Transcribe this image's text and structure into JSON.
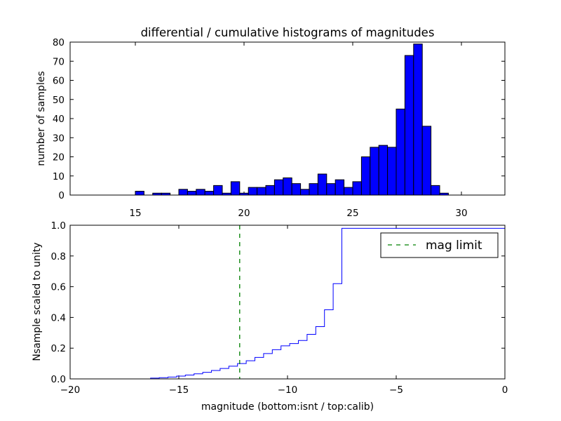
{
  "chart_data": [
    {
      "type": "bar",
      "title": "differential / cumulative histograms of magnitudes",
      "xlabel": "",
      "ylabel": "number of samples",
      "xlim": [
        12.0,
        32.0
      ],
      "ylim": [
        0,
        80
      ],
      "x_ticks": [
        "15",
        "20",
        "25",
        "30"
      ],
      "y_ticks": [
        "0",
        "10",
        "20",
        "30",
        "40",
        "50",
        "60",
        "70",
        "80"
      ],
      "x_tick_position": "top",
      "bin_width": 0.4,
      "color": "#0000ff",
      "edge_color": "#000000",
      "bins": [
        {
          "x0": 15.0,
          "count": 2
        },
        {
          "x0": 15.4,
          "count": 0
        },
        {
          "x0": 15.8,
          "count": 1
        },
        {
          "x0": 16.2,
          "count": 1
        },
        {
          "x0": 16.6,
          "count": 0
        },
        {
          "x0": 17.0,
          "count": 3
        },
        {
          "x0": 17.4,
          "count": 2
        },
        {
          "x0": 17.8,
          "count": 3
        },
        {
          "x0": 18.2,
          "count": 2
        },
        {
          "x0": 18.6,
          "count": 5
        },
        {
          "x0": 19.0,
          "count": 1
        },
        {
          "x0": 19.4,
          "count": 7
        },
        {
          "x0": 19.8,
          "count": 1
        },
        {
          "x0": 20.2,
          "count": 4
        },
        {
          "x0": 20.6,
          "count": 4
        },
        {
          "x0": 21.0,
          "count": 5
        },
        {
          "x0": 21.4,
          "count": 8
        },
        {
          "x0": 21.8,
          "count": 9
        },
        {
          "x0": 22.2,
          "count": 6
        },
        {
          "x0": 22.6,
          "count": 3
        },
        {
          "x0": 23.0,
          "count": 6
        },
        {
          "x0": 23.4,
          "count": 11
        },
        {
          "x0": 23.8,
          "count": 6
        },
        {
          "x0": 24.2,
          "count": 8
        },
        {
          "x0": 24.6,
          "count": 4
        },
        {
          "x0": 25.0,
          "count": 7
        },
        {
          "x0": 25.4,
          "count": 20
        },
        {
          "x0": 25.8,
          "count": 25
        },
        {
          "x0": 26.2,
          "count": 26
        },
        {
          "x0": 26.6,
          "count": 25
        },
        {
          "x0": 27.0,
          "count": 45
        },
        {
          "x0": 27.4,
          "count": 73
        },
        {
          "x0": 27.8,
          "count": 79
        },
        {
          "x0": 28.2,
          "count": 36
        },
        {
          "x0": 28.6,
          "count": 5
        },
        {
          "x0": 29.0,
          "count": 1
        }
      ]
    },
    {
      "type": "line",
      "step": true,
      "xlabel": "magnitude (bottom:isnt / top:calib)",
      "ylabel": "Nsample scaled to unity",
      "xlim": [
        -20,
        0
      ],
      "ylim": [
        0.0,
        1.0
      ],
      "x_ticks": [
        "−20",
        "−15",
        "−10",
        "−5",
        "0"
      ],
      "y_ticks": [
        "0.0",
        "0.2",
        "0.4",
        "0.6",
        "0.8",
        "1.0"
      ],
      "legend": "top-right",
      "series": [
        {
          "color": "#0000ff",
          "x": [
            -20.0,
            -16.3,
            -15.9,
            -15.5,
            -15.1,
            -14.7,
            -14.3,
            -13.9,
            -13.5,
            -13.1,
            -12.7,
            -12.3,
            -11.9,
            -11.5,
            -11.1,
            -10.7,
            -10.3,
            -9.9,
            -9.5,
            -9.1,
            -8.7,
            -8.3,
            -7.9,
            -7.5,
            0.0
          ],
          "y": [
            0.0,
            0.005,
            0.008,
            0.012,
            0.018,
            0.025,
            0.033,
            0.043,
            0.055,
            0.068,
            0.083,
            0.1,
            0.118,
            0.14,
            0.165,
            0.19,
            0.215,
            0.23,
            0.25,
            0.29,
            0.34,
            0.45,
            0.62,
            0.98,
            1.0
          ]
        },
        {
          "name": "mag limit",
          "style": "dashed",
          "color": "#008000",
          "x_value": -12.2
        }
      ]
    }
  ]
}
